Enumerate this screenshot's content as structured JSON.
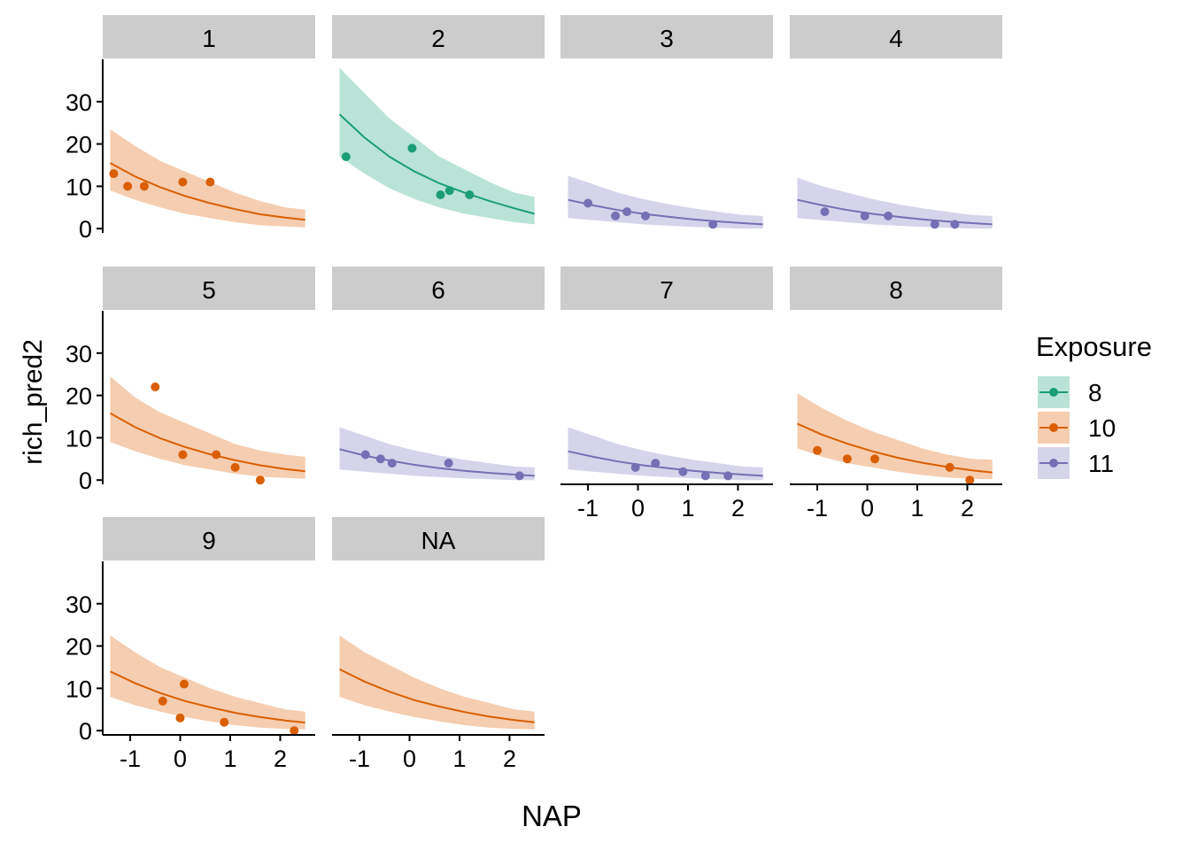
{
  "chart_data": {
    "type": "faceted-scatter-line-ribbon",
    "xlabel": "NAP",
    "ylabel": "rich_pred2",
    "xlim": [
      -1.55,
      2.7
    ],
    "ylim": [
      -1,
      40
    ],
    "x_ticks": [
      -1,
      0,
      1,
      2
    ],
    "x_tick_labels": [
      "-1",
      "0",
      "1",
      "2"
    ],
    "y_ticks": [
      0,
      10,
      20,
      30
    ],
    "y_tick_labels": [
      "0",
      "10",
      "20",
      "30"
    ],
    "legend": {
      "title": "Exposure",
      "position": "right",
      "entries": [
        {
          "label": "8",
          "color": "#1B9E77",
          "fill": "#B9E3D6"
        },
        {
          "label": "10",
          "color": "#D95F02",
          "fill": "#F5CDB0"
        },
        {
          "label": "11",
          "color": "#7570B3",
          "fill": "#D6D4EB"
        }
      ]
    },
    "panels": [
      {
        "label": "1",
        "exposure": "10",
        "curve": {
          "x": [
            -1.4,
            -0.9,
            -0.4,
            0.1,
            0.6,
            1.1,
            1.6,
            2.1,
            2.5
          ],
          "y": [
            15.5,
            12.3,
            9.8,
            7.7,
            6.0,
            4.6,
            3.4,
            2.6,
            2.1
          ]
        },
        "lower": [
          9.0,
          6.8,
          5.0,
          3.5,
          2.5,
          1.5,
          0.8,
          0.5,
          0.3
        ],
        "upper": [
          23.5,
          19.5,
          16.0,
          13.5,
          11.0,
          8.5,
          6.5,
          5.0,
          4.5
        ],
        "points": [
          {
            "x": -1.33,
            "y": 13
          },
          {
            "x": -1.05,
            "y": 10
          },
          {
            "x": -0.72,
            "y": 10
          },
          {
            "x": 0.05,
            "y": 11
          },
          {
            "x": 0.6,
            "y": 11
          }
        ]
      },
      {
        "label": "2",
        "exposure": "8",
        "curve": {
          "x": [
            -1.4,
            -0.9,
            -0.4,
            0.1,
            0.6,
            1.1,
            1.6,
            2.1,
            2.5
          ],
          "y": [
            27.0,
            21.5,
            17.0,
            13.5,
            10.7,
            8.5,
            6.5,
            4.8,
            3.5
          ]
        },
        "lower": [
          17.0,
          13.0,
          9.5,
          7.0,
          5.0,
          3.5,
          2.5,
          1.5,
          1.0
        ],
        "upper": [
          38.0,
          32.0,
          26.0,
          21.5,
          17.0,
          14.0,
          11.0,
          8.5,
          7.5
        ],
        "points": [
          {
            "x": -1.27,
            "y": 17
          },
          {
            "x": 0.05,
            "y": 19
          },
          {
            "x": 0.62,
            "y": 8
          },
          {
            "x": 0.8,
            "y": 9
          },
          {
            "x": 1.2,
            "y": 8
          }
        ]
      },
      {
        "label": "3",
        "exposure": "11",
        "curve": {
          "x": [
            -1.4,
            -0.9,
            -0.4,
            0.1,
            0.6,
            1.1,
            1.6,
            2.1,
            2.5
          ],
          "y": [
            6.8,
            5.5,
            4.4,
            3.5,
            2.8,
            2.2,
            1.7,
            1.3,
            1.0
          ]
        },
        "lower": [
          2.5,
          2.0,
          1.5,
          1.0,
          0.7,
          0.4,
          0.2,
          0.0,
          0.0
        ],
        "upper": [
          12.5,
          10.5,
          8.5,
          7.0,
          5.8,
          4.8,
          4.0,
          3.2,
          3.0
        ],
        "points": [
          {
            "x": -1.0,
            "y": 6
          },
          {
            "x": -0.45,
            "y": 3
          },
          {
            "x": -0.22,
            "y": 4
          },
          {
            "x": 0.15,
            "y": 3
          },
          {
            "x": 1.5,
            "y": 1
          }
        ]
      },
      {
        "label": "4",
        "exposure": "11",
        "curve": {
          "x": [
            -1.4,
            -0.9,
            -0.4,
            0.1,
            0.6,
            1.1,
            1.6,
            2.1,
            2.5
          ],
          "y": [
            6.8,
            5.5,
            4.4,
            3.5,
            2.8,
            2.2,
            1.7,
            1.3,
            1.0
          ]
        },
        "lower": [
          2.5,
          2.0,
          1.5,
          1.0,
          0.7,
          0.4,
          0.2,
          0.0,
          0.0
        ],
        "upper": [
          12.0,
          10.0,
          8.5,
          7.0,
          5.8,
          4.8,
          4.0,
          3.2,
          3.0
        ],
        "points": [
          {
            "x": -0.85,
            "y": 4
          },
          {
            "x": -0.05,
            "y": 3
          },
          {
            "x": 0.42,
            "y": 3
          },
          {
            "x": 1.35,
            "y": 1
          },
          {
            "x": 1.75,
            "y": 1
          }
        ]
      },
      {
        "label": "5",
        "exposure": "10",
        "curve": {
          "x": [
            -1.4,
            -0.9,
            -0.4,
            0.1,
            0.6,
            1.1,
            1.6,
            2.1,
            2.5
          ],
          "y": [
            15.8,
            12.5,
            9.9,
            7.8,
            6.1,
            4.7,
            3.5,
            2.6,
            2.1
          ]
        },
        "lower": [
          9.0,
          6.8,
          5.0,
          3.5,
          2.5,
          1.5,
          0.8,
          0.5,
          0.3
        ],
        "upper": [
          24.5,
          19.5,
          16.0,
          13.5,
          11.0,
          8.5,
          7.0,
          6.0,
          5.5
        ],
        "points": [
          {
            "x": -0.5,
            "y": 22
          },
          {
            "x": 0.05,
            "y": 6
          },
          {
            "x": 0.72,
            "y": 6
          },
          {
            "x": 1.1,
            "y": 3
          },
          {
            "x": 1.6,
            "y": 0
          }
        ]
      },
      {
        "label": "6",
        "exposure": "11",
        "curve": {
          "x": [
            -1.4,
            -0.9,
            -0.4,
            0.1,
            0.6,
            1.1,
            1.6,
            2.1,
            2.5
          ],
          "y": [
            7.3,
            5.8,
            4.6,
            3.6,
            2.8,
            2.2,
            1.7,
            1.3,
            1.0
          ]
        },
        "lower": [
          2.5,
          2.0,
          1.5,
          1.0,
          0.7,
          0.4,
          0.2,
          0.0,
          0.0
        ],
        "upper": [
          12.5,
          10.5,
          8.5,
          7.0,
          5.8,
          4.8,
          4.0,
          3.2,
          3.0
        ],
        "points": [
          {
            "x": -0.88,
            "y": 6
          },
          {
            "x": -0.58,
            "y": 5
          },
          {
            "x": -0.35,
            "y": 4
          },
          {
            "x": 0.78,
            "y": 4
          },
          {
            "x": 2.2,
            "y": 1
          }
        ]
      },
      {
        "label": "7",
        "exposure": "11",
        "curve": {
          "x": [
            -1.4,
            -0.9,
            -0.4,
            0.1,
            0.6,
            1.1,
            1.6,
            2.1,
            2.5
          ],
          "y": [
            6.8,
            5.5,
            4.4,
            3.5,
            2.8,
            2.2,
            1.7,
            1.3,
            1.0
          ]
        },
        "lower": [
          2.5,
          2.0,
          1.5,
          1.0,
          0.7,
          0.4,
          0.2,
          0.0,
          0.0
        ],
        "upper": [
          12.5,
          10.5,
          8.5,
          7.0,
          5.8,
          4.8,
          4.0,
          3.2,
          3.0
        ],
        "points": [
          {
            "x": -0.05,
            "y": 3
          },
          {
            "x": 0.35,
            "y": 4
          },
          {
            "x": 0.9,
            "y": 2
          },
          {
            "x": 1.35,
            "y": 1
          },
          {
            "x": 1.8,
            "y": 1
          }
        ]
      },
      {
        "label": "8",
        "exposure": "10",
        "curve": {
          "x": [
            -1.4,
            -0.9,
            -0.4,
            0.1,
            0.6,
            1.1,
            1.6,
            2.1,
            2.5
          ],
          "y": [
            13.3,
            10.7,
            8.6,
            6.8,
            5.3,
            4.1,
            3.1,
            2.3,
            1.8
          ]
        },
        "lower": [
          7.5,
          5.5,
          4.0,
          3.0,
          2.0,
          1.2,
          0.6,
          0.3,
          0.2
        ],
        "upper": [
          20.5,
          17.0,
          14.0,
          11.5,
          9.5,
          7.5,
          6.0,
          5.0,
          4.8
        ],
        "points": [
          {
            "x": -1.0,
            "y": 7
          },
          {
            "x": -0.4,
            "y": 5
          },
          {
            "x": 0.15,
            "y": 5
          },
          {
            "x": 1.65,
            "y": 3
          },
          {
            "x": 2.05,
            "y": 0
          }
        ]
      },
      {
        "label": "9",
        "exposure": "10",
        "curve": {
          "x": [
            -1.4,
            -0.9,
            -0.4,
            0.1,
            0.6,
            1.1,
            1.6,
            2.1,
            2.5
          ],
          "y": [
            14.0,
            11.2,
            8.9,
            7.0,
            5.5,
            4.2,
            3.2,
            2.4,
            1.9
          ]
        },
        "lower": [
          8.0,
          6.0,
          4.5,
          3.2,
          2.2,
          1.3,
          0.7,
          0.4,
          0.3
        ],
        "upper": [
          22.5,
          18.5,
          15.0,
          12.5,
          10.0,
          8.0,
          6.5,
          5.0,
          4.5
        ],
        "points": [
          {
            "x": -0.35,
            "y": 7
          },
          {
            "x": 0.0,
            "y": 3
          },
          {
            "x": 0.08,
            "y": 11
          },
          {
            "x": 0.88,
            "y": 2
          },
          {
            "x": 2.28,
            "y": 0
          }
        ]
      },
      {
        "label": "NA",
        "exposure": "10",
        "curve": {
          "x": [
            -1.4,
            -0.9,
            -0.4,
            0.1,
            0.6,
            1.1,
            1.6,
            2.1,
            2.5
          ],
          "y": [
            14.5,
            11.6,
            9.2,
            7.2,
            5.7,
            4.4,
            3.3,
            2.5,
            2.0
          ]
        },
        "lower": [
          8.0,
          6.0,
          4.5,
          3.2,
          2.2,
          1.3,
          0.7,
          0.4,
          0.3
        ],
        "upper": [
          22.5,
          18.5,
          15.5,
          12.5,
          10.0,
          8.0,
          6.5,
          5.0,
          4.5
        ],
        "points": []
      }
    ]
  }
}
